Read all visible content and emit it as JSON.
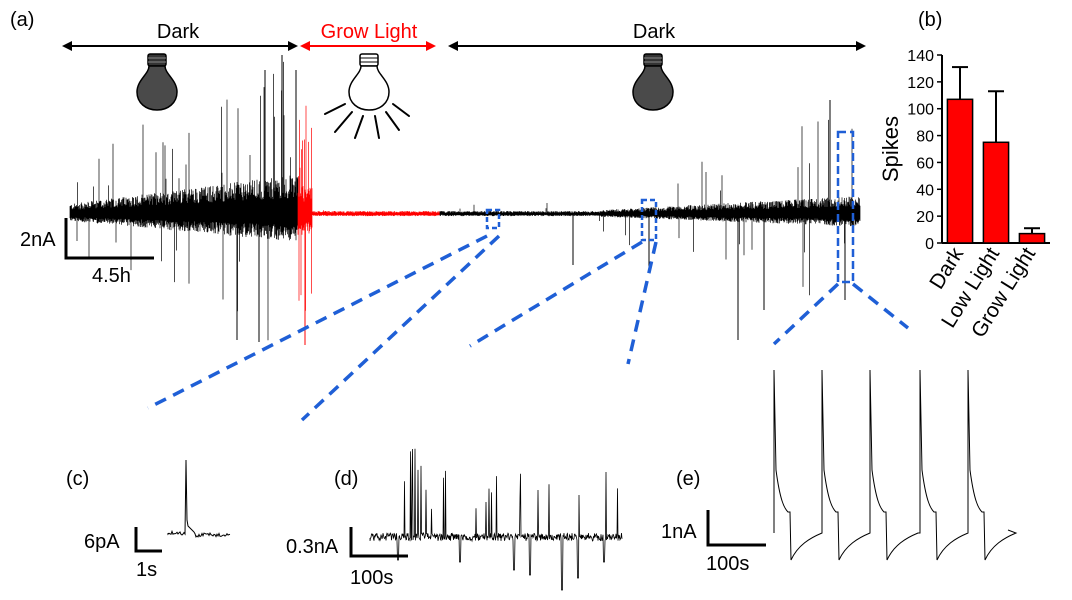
{
  "colors": {
    "trace": "#000000",
    "light": "#ff0000",
    "zoom": "#1f5fd6",
    "bar": "#ff0000",
    "bulb_dark": "#4a4a4a"
  },
  "panel_a": {
    "panel_label": "(a)",
    "segments": [
      {
        "label": "Dark",
        "color": "#000000",
        "bulb": "bulb-dark-icon"
      },
      {
        "label": "Grow Light",
        "color": "#ff0000",
        "bulb": "bulb-lit-icon"
      },
      {
        "label": "Dark",
        "color": "#000000",
        "bulb": "bulb-dark-icon"
      }
    ],
    "scale_y": "2nA",
    "scale_x": "4.5h"
  },
  "chart_data": {
    "type": "bar",
    "panel_label": "(b)",
    "categories": [
      "Dark",
      "Low Light",
      "Grow Light"
    ],
    "values": [
      107,
      75,
      7
    ],
    "errors": [
      24,
      38,
      4
    ],
    "ylabel": "Spikes",
    "ylim": [
      0,
      140
    ],
    "yticks": [
      0,
      20,
      40,
      60,
      80,
      100,
      120,
      140
    ]
  },
  "panel_c": {
    "panel_label": "(c)",
    "scale_y": "6pA",
    "scale_x": "1s"
  },
  "panel_d": {
    "panel_label": "(d)",
    "scale_y": "0.3nA",
    "scale_x": "100s"
  },
  "panel_e": {
    "panel_label": "(e)",
    "scale_y": "1nA",
    "scale_x": "100s"
  }
}
